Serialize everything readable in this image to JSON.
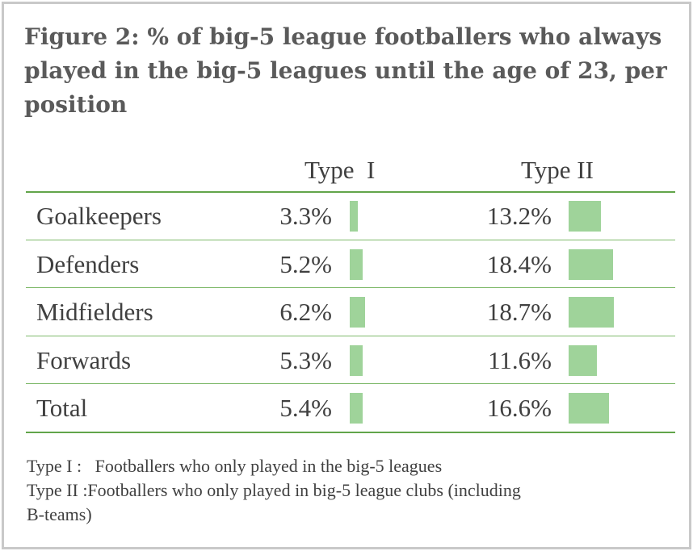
{
  "chart_data": {
    "type": "table",
    "title": "Figure 2: % of big-5 league footballers who always played in the big-5 leagues until the age of 23, per position",
    "columns": [
      "Type  I",
      "Type II"
    ],
    "rows": [
      {
        "label": "Goalkeepers",
        "type1": 3.3,
        "type1_text": "3.3%",
        "type2": 13.2,
        "type2_text": "13.2%"
      },
      {
        "label": "Defenders",
        "type1": 5.2,
        "type1_text": "5.2%",
        "type2": 18.4,
        "type2_text": "18.4%"
      },
      {
        "label": "Midfielders",
        "type1": 6.2,
        "type1_text": "6.2%",
        "type2": 18.7,
        "type2_text": "18.7%"
      },
      {
        "label": "Forwards",
        "type1": 5.3,
        "type1_text": "5.3%",
        "type2": 11.6,
        "type2_text": "11.6%"
      },
      {
        "label": "Total",
        "type1": 5.4,
        "type1_text": "5.4%",
        "type2": 16.6,
        "type2_text": "16.6%"
      }
    ],
    "notes": [
      "Type I :   Footballers who only played in the big-5 leagues",
      "Type II :Footballers who only played in big-5 league clubs (including",
      "B-teams)"
    ],
    "colors": {
      "bar": "#9fd39a",
      "rule": "#62a54a",
      "title_text": "#5a5a5a",
      "body_text": "#404040",
      "frame": "#c9c9c9"
    }
  }
}
